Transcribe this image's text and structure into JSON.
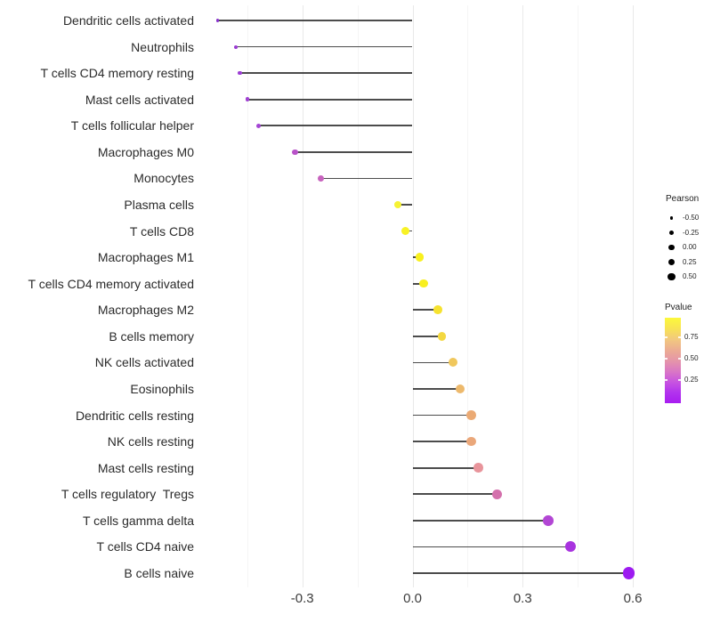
{
  "chart_data": {
    "type": "scatter",
    "variant": "lollipop",
    "title": "",
    "xlabel": "",
    "ylabel": "",
    "grid": "vertical-only",
    "xlim": [
      -0.56,
      0.64
    ],
    "baseline": 0.0,
    "x_ticks": {
      "values": [
        -0.3,
        0.0,
        0.3,
        0.6
      ],
      "labels": [
        "-0.3",
        "0.0",
        "0.3",
        "0.6"
      ]
    },
    "x_minor_ticks": [
      -0.45,
      -0.15,
      0.15,
      0.45
    ],
    "categories": [
      "Dendritic cells activated",
      "Neutrophils",
      "T cells CD4 memory resting",
      "Mast cells activated",
      "T cells follicular helper",
      "Macrophages M0",
      "Monocytes",
      "Plasma cells",
      "T cells CD8",
      "Macrophages M1",
      "T cells CD4 memory activated",
      "Macrophages M2",
      "B cells memory",
      "NK cells activated",
      "Eosinophils",
      "Dendritic cells resting",
      "NK cells resting",
      "Mast cells resting",
      "T cells regulatory  Tregs",
      "T cells gamma delta",
      "T cells CD4 naive",
      "B cells naive"
    ],
    "series": [
      {
        "name": "Pearson",
        "values": [
          -0.53,
          -0.48,
          -0.47,
          -0.45,
          -0.42,
          -0.32,
          -0.25,
          -0.04,
          -0.02,
          0.02,
          0.03,
          0.07,
          0.08,
          0.11,
          0.13,
          0.16,
          0.16,
          0.18,
          0.23,
          0.37,
          0.43,
          0.59
        ]
      }
    ],
    "point_colors": [
      "#8833CC",
      "#9A3BD2",
      "#9C3DD4",
      "#A041D2",
      "#A445D4",
      "#B852C8",
      "#C763BE",
      "#F6F233",
      "#F8F225",
      "#F8F01E",
      "#F8EF20",
      "#F6E22F",
      "#F3D841",
      "#F0C75C",
      "#EDB96C",
      "#EBAA74",
      "#EAA77A",
      "#E8949B",
      "#D470AC",
      "#B246D4",
      "#A833DF",
      "#9D1BF0"
    ],
    "size_legend": {
      "title": "Pearson",
      "labels": [
        "-0.50",
        "-0.25",
        "0.00",
        "0.25",
        "0.50"
      ]
    },
    "color_legend": {
      "title": "Pvalue",
      "tick_labels": [
        "0.75",
        "0.50",
        "0.25"
      ],
      "gradient_top_to_bottom": [
        "#FCF93B",
        "#F8E353",
        "#F2C97E",
        "#ECAD92",
        "#E596A8",
        "#DA78C4",
        "#C855E0",
        "#B233EE",
        "#A81CF0"
      ]
    }
  }
}
